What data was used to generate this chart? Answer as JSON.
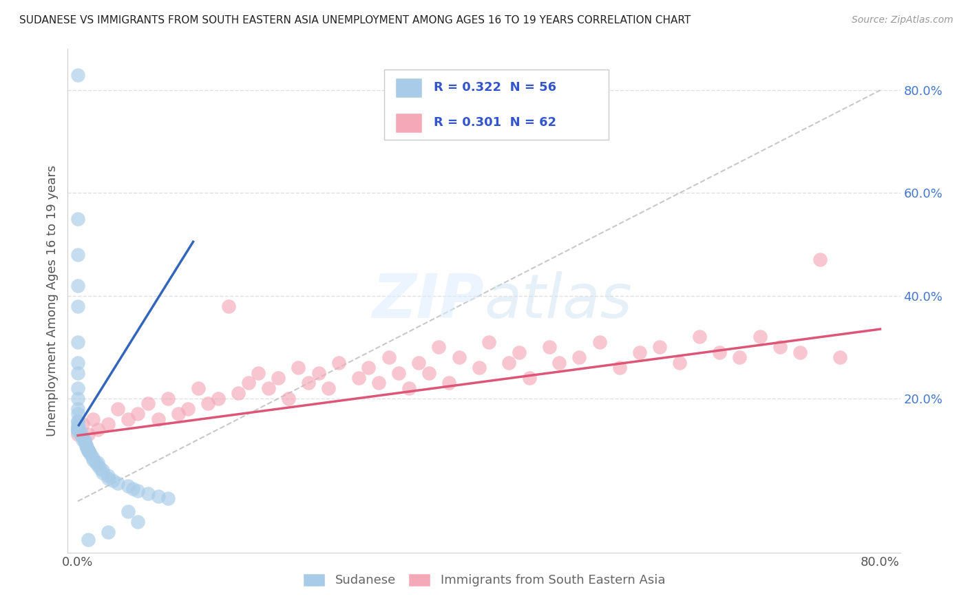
{
  "title": "SUDANESE VS IMMIGRANTS FROM SOUTH EASTERN ASIA UNEMPLOYMENT AMONG AGES 16 TO 19 YEARS CORRELATION CHART",
  "source": "Source: ZipAtlas.com",
  "ylabel": "Unemployment Among Ages 16 to 19 years",
  "blue_color": "#a8cce8",
  "pink_color": "#f4a8b8",
  "blue_line_color": "#3366bb",
  "pink_line_color": "#dd5577",
  "diag_color": "#bbbbbb",
  "grid_color": "#dddddd",
  "legend_label1": "Sudanese",
  "legend_label2": "Immigrants from South Eastern Asia",
  "legend_text1": "R = 0.322  N = 56",
  "legend_text2": "R = 0.301  N = 62",
  "right_ytick_color": "#4477cc",
  "xtick_color": "#555555",
  "ylabel_color": "#555555",
  "blue_trend_x": [
    0.001,
    0.115
  ],
  "blue_trend_y": [
    0.148,
    0.505
  ],
  "pink_trend_x": [
    0.0,
    0.8
  ],
  "pink_trend_y": [
    0.128,
    0.335
  ],
  "sudanese_x": [
    0.0,
    0.0,
    0.0,
    0.0,
    0.0,
    0.0,
    0.0,
    0.0,
    0.0,
    0.0,
    0.0,
    0.0,
    0.0,
    0.0,
    0.0,
    0.0,
    0.0,
    0.0,
    0.0,
    0.0,
    0.003,
    0.003,
    0.005,
    0.005,
    0.007,
    0.007,
    0.008,
    0.008,
    0.009,
    0.01,
    0.01,
    0.01,
    0.012,
    0.013,
    0.015,
    0.015,
    0.018,
    0.02,
    0.02,
    0.022,
    0.025,
    0.025,
    0.03,
    0.03,
    0.035,
    0.04,
    0.05,
    0.055,
    0.06,
    0.07,
    0.08,
    0.09,
    0.05,
    0.06,
    0.03,
    0.01
  ],
  "sudanese_y": [
    0.83,
    0.55,
    0.48,
    0.42,
    0.38,
    0.31,
    0.27,
    0.25,
    0.22,
    0.2,
    0.18,
    0.17,
    0.155,
    0.155,
    0.148,
    0.145,
    0.142,
    0.14,
    0.14,
    0.135,
    0.135,
    0.13,
    0.125,
    0.12,
    0.12,
    0.115,
    0.11,
    0.108,
    0.105,
    0.1,
    0.1,
    0.098,
    0.095,
    0.09,
    0.085,
    0.08,
    0.075,
    0.075,
    0.07,
    0.065,
    0.06,
    0.055,
    0.05,
    0.045,
    0.04,
    0.035,
    0.03,
    0.025,
    0.02,
    0.015,
    0.01,
    0.005,
    -0.02,
    -0.04,
    -0.06,
    -0.075
  ],
  "sea_x": [
    0.0,
    0.0,
    0.005,
    0.01,
    0.015,
    0.02,
    0.03,
    0.04,
    0.05,
    0.06,
    0.07,
    0.08,
    0.09,
    0.1,
    0.11,
    0.12,
    0.13,
    0.14,
    0.15,
    0.16,
    0.17,
    0.18,
    0.19,
    0.2,
    0.21,
    0.22,
    0.23,
    0.24,
    0.25,
    0.26,
    0.28,
    0.29,
    0.3,
    0.31,
    0.32,
    0.33,
    0.34,
    0.35,
    0.36,
    0.37,
    0.38,
    0.4,
    0.41,
    0.43,
    0.44,
    0.45,
    0.47,
    0.48,
    0.5,
    0.52,
    0.54,
    0.56,
    0.58,
    0.6,
    0.62,
    0.64,
    0.66,
    0.68,
    0.7,
    0.72,
    0.74,
    0.76
  ],
  "sea_y": [
    0.13,
    0.14,
    0.15,
    0.13,
    0.16,
    0.14,
    0.15,
    0.18,
    0.16,
    0.17,
    0.19,
    0.16,
    0.2,
    0.17,
    0.18,
    0.22,
    0.19,
    0.2,
    0.38,
    0.21,
    0.23,
    0.25,
    0.22,
    0.24,
    0.2,
    0.26,
    0.23,
    0.25,
    0.22,
    0.27,
    0.24,
    0.26,
    0.23,
    0.28,
    0.25,
    0.22,
    0.27,
    0.25,
    0.3,
    0.23,
    0.28,
    0.26,
    0.31,
    0.27,
    0.29,
    0.24,
    0.3,
    0.27,
    0.28,
    0.31,
    0.26,
    0.29,
    0.3,
    0.27,
    0.32,
    0.29,
    0.28,
    0.32,
    0.3,
    0.29,
    0.47,
    0.28
  ],
  "xlim": [
    -0.01,
    0.82
  ],
  "ylim": [
    -0.1,
    0.88
  ],
  "right_yticks": [
    0.0,
    0.2,
    0.4,
    0.6,
    0.8
  ],
  "right_yticklabels": [
    "",
    "20.0%",
    "40.0%",
    "60.0%",
    "80.0%"
  ]
}
